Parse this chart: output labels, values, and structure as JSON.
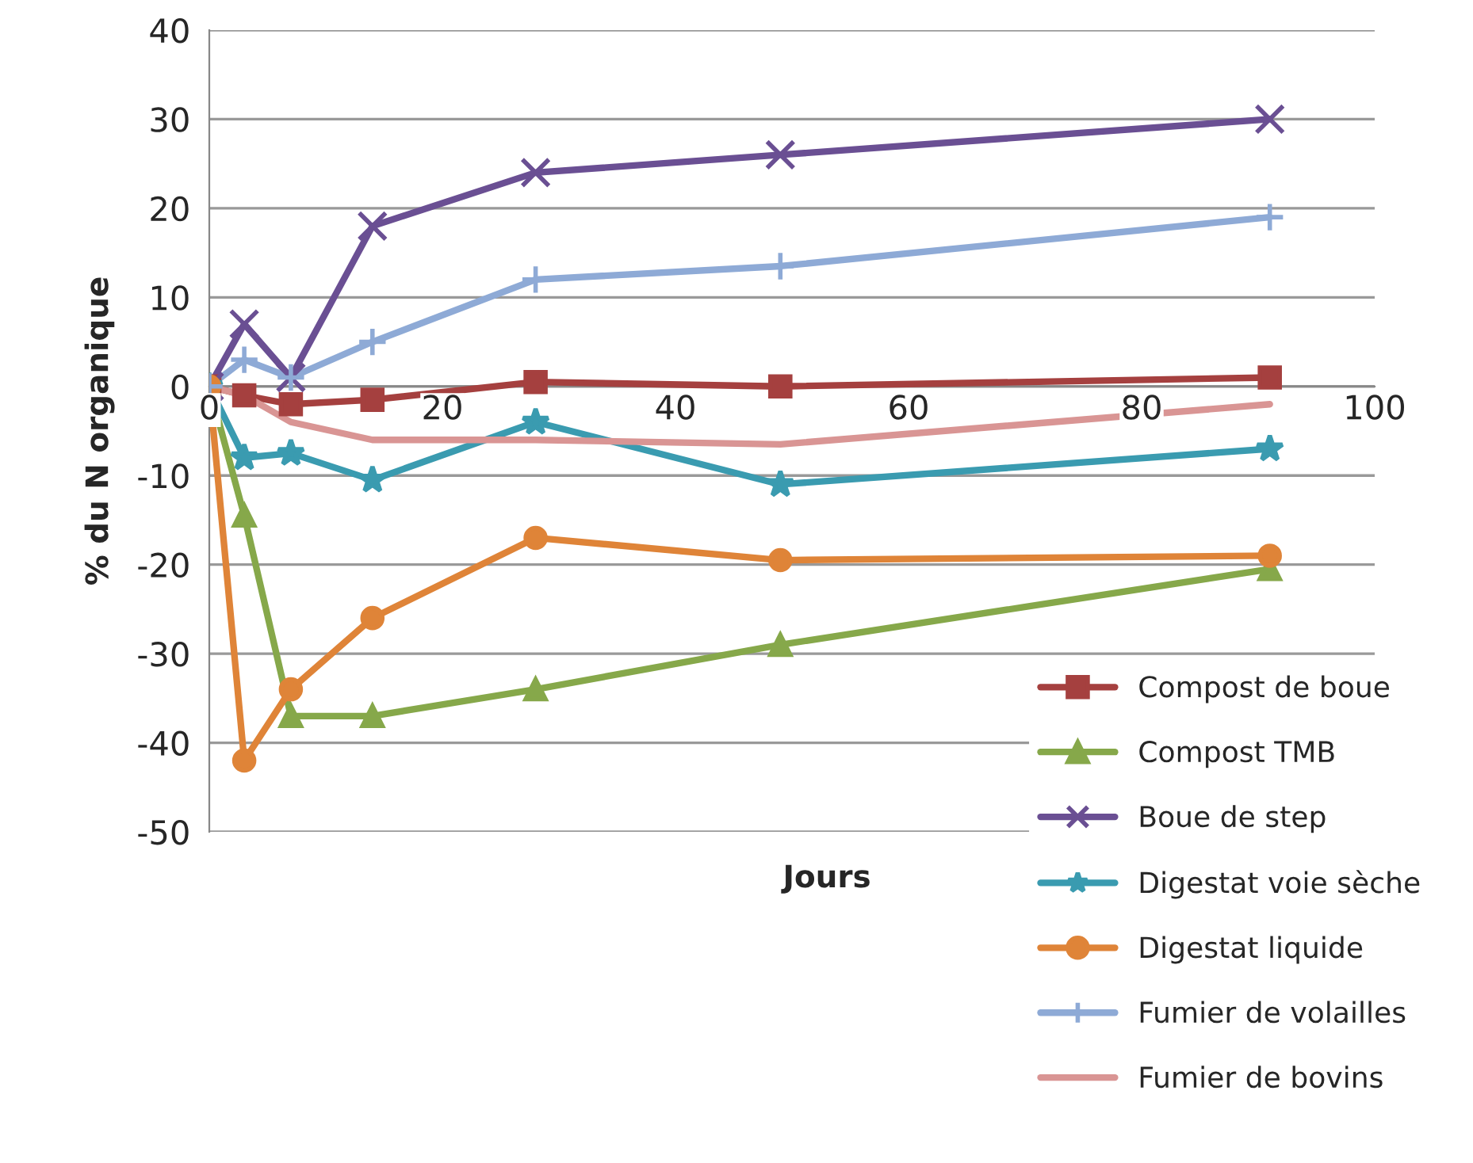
{
  "chart_data": {
    "type": "line",
    "xlabel": "Jours",
    "ylabel": "% du N organique",
    "x": [
      0,
      3,
      7,
      14,
      28,
      49,
      91
    ],
    "xlim": [
      0,
      100
    ],
    "xticks": [
      0,
      20,
      40,
      60,
      80,
      100
    ],
    "ylim": [
      -50,
      40
    ],
    "yticks": [
      -50,
      -40,
      -30,
      -20,
      -10,
      0,
      10,
      20,
      30,
      40
    ],
    "grid": "y",
    "legend": "bottom right",
    "series": [
      {
        "name": "Compost de boue",
        "color": "#a5403f",
        "marker": "square",
        "values": [
          0,
          -1,
          -2,
          -1.5,
          0.5,
          0,
          1
        ]
      },
      {
        "name": "Compost TMB",
        "color": "#86a84a",
        "marker": "triangle",
        "values": [
          0,
          -14.5,
          -37,
          -37,
          -34,
          -29,
          -20.5
        ]
      },
      {
        "name": "Boue de step",
        "color": "#6a4f93",
        "marker": "cross",
        "values": [
          0,
          7,
          1,
          18,
          24,
          26,
          30
        ]
      },
      {
        "name": "Digestat voie sèche",
        "color": "#3a9bb0",
        "marker": "star",
        "values": [
          0,
          -8,
          -7.5,
          -10.5,
          -4,
          -11,
          -7
        ]
      },
      {
        "name": "Digestat liquide",
        "color": "#df8438",
        "marker": "circle",
        "values": [
          0,
          -42,
          -34,
          -26,
          -17,
          -19.5,
          -19
        ]
      },
      {
        "name": "Fumier de volailles",
        "color": "#8eaad6",
        "marker": "plus",
        "values": [
          0,
          3,
          1,
          5,
          12,
          13.5,
          19
        ]
      },
      {
        "name": "Fumier de bovins",
        "color": "#d99594",
        "marker": "none",
        "values": [
          0,
          -1,
          -4,
          -6,
          -6,
          -6.5,
          -2
        ]
      }
    ]
  }
}
